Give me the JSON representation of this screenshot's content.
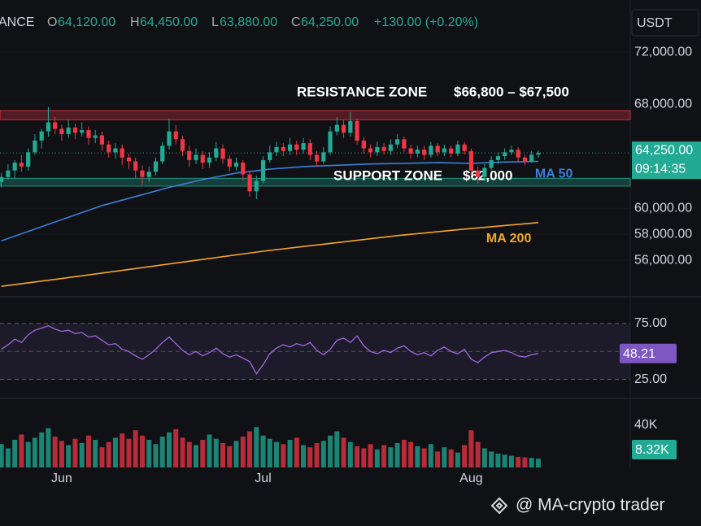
{
  "header": {
    "symbol": "ANCE",
    "open_key": "O",
    "open": "64,120.00",
    "high_key": "H",
    "high": "64,450.00",
    "low_key": "L",
    "low": "63,880.00",
    "close_key": "C",
    "close": "64,250.00",
    "change": "+130.00 (+0.20%)",
    "currency": "USDT"
  },
  "chart_data": [
    {
      "type": "candlestick",
      "x": [
        -9,
        -8,
        -7,
        -6,
        -5,
        -4,
        -3,
        -2,
        -1,
        0,
        1,
        2,
        3,
        4,
        5,
        6,
        7,
        8,
        9,
        10,
        11,
        12,
        13,
        14,
        15,
        16,
        17,
        18,
        19,
        20,
        21,
        22,
        23,
        24,
        25,
        26,
        27,
        28,
        29,
        30,
        31,
        32,
        33,
        34,
        35,
        36,
        37,
        38,
        39,
        40,
        41,
        42,
        43,
        44,
        45,
        46,
        47,
        48,
        49,
        50,
        51,
        52,
        53,
        54,
        55,
        56,
        57,
        58,
        59,
        60,
        61,
        62,
        63,
        64,
        65,
        66,
        67,
        68,
        69,
        70,
        71
      ],
      "ohlc": [
        [
          62000,
          62700,
          61600,
          62400
        ],
        [
          62400,
          63400,
          62200,
          62900
        ],
        [
          62900,
          63700,
          62300,
          63500
        ],
        [
          63500,
          64100,
          62800,
          63200
        ],
        [
          63200,
          64600,
          62900,
          64300
        ],
        [
          64300,
          65700,
          64100,
          65200
        ],
        [
          65200,
          66100,
          64600,
          65900
        ],
        [
          65900,
          67800,
          65500,
          66600
        ],
        [
          66600,
          67000,
          65700,
          66100
        ],
        [
          66100,
          66400,
          65200,
          65700
        ],
        [
          65700,
          66800,
          65400,
          66200
        ],
        [
          66200,
          66500,
          65300,
          65800
        ],
        [
          65800,
          66600,
          65500,
          66000
        ],
        [
          66000,
          66300,
          64900,
          65400
        ],
        [
          65400,
          66000,
          65000,
          65600
        ],
        [
          65600,
          65900,
          64400,
          64900
        ],
        [
          64900,
          65200,
          63900,
          64300
        ],
        [
          64300,
          65000,
          63800,
          64600
        ],
        [
          64600,
          64900,
          63300,
          63900
        ],
        [
          63900,
          64200,
          63000,
          63600
        ],
        [
          63600,
          63900,
          62300,
          62900
        ],
        [
          62900,
          63300,
          61800,
          62400
        ],
        [
          62400,
          63200,
          62000,
          62800
        ],
        [
          62800,
          63900,
          62500,
          63600
        ],
        [
          63600,
          65100,
          63400,
          64800
        ],
        [
          64800,
          66900,
          64500,
          65900
        ],
        [
          65900,
          66400,
          64900,
          65300
        ],
        [
          65300,
          65600,
          64000,
          64400
        ],
        [
          64400,
          64800,
          63200,
          63700
        ],
        [
          63700,
          64600,
          63400,
          64100
        ],
        [
          64100,
          64400,
          63000,
          63500
        ],
        [
          63500,
          64300,
          63100,
          63900
        ],
        [
          63900,
          65100,
          63600,
          64600
        ],
        [
          64600,
          64900,
          63400,
          63800
        ],
        [
          63800,
          64100,
          62800,
          63200
        ],
        [
          63200,
          63900,
          62900,
          63500
        ],
        [
          63500,
          63700,
          62100,
          62600
        ],
        [
          62600,
          62900,
          60900,
          61300
        ],
        [
          61300,
          62500,
          60700,
          62100
        ],
        [
          62100,
          64000,
          61900,
          63700
        ],
        [
          63700,
          64800,
          63500,
          64300
        ],
        [
          64300,
          65100,
          64000,
          64700
        ],
        [
          64700,
          65000,
          64000,
          64400
        ],
        [
          64400,
          65400,
          64100,
          64900
        ],
        [
          64900,
          65200,
          64100,
          64500
        ],
        [
          64500,
          65400,
          64200,
          65000
        ],
        [
          65000,
          65300,
          63700,
          64100
        ],
        [
          64100,
          64400,
          63200,
          63600
        ],
        [
          63600,
          64700,
          63400,
          64300
        ],
        [
          64300,
          66300,
          64100,
          65900
        ],
        [
          65900,
          67000,
          65600,
          66400
        ],
        [
          66400,
          66800,
          65400,
          65800
        ],
        [
          65800,
          67400,
          65500,
          66700
        ],
        [
          66700,
          66900,
          64900,
          65200
        ],
        [
          65200,
          65500,
          64200,
          64600
        ],
        [
          64600,
          64900,
          63900,
          64300
        ],
        [
          64300,
          65100,
          64000,
          64700
        ],
        [
          64700,
          65000,
          64100,
          64400
        ],
        [
          64400,
          65300,
          64100,
          64900
        ],
        [
          64900,
          65700,
          64600,
          65300
        ],
        [
          65300,
          65500,
          64300,
          64600
        ],
        [
          64600,
          64900,
          63800,
          64200
        ],
        [
          64200,
          64800,
          63900,
          64500
        ],
        [
          64500,
          64800,
          63700,
          64100
        ],
        [
          64100,
          65100,
          63900,
          64800
        ],
        [
          64800,
          65000,
          64000,
          64300
        ],
        [
          64300,
          64900,
          64000,
          64600
        ],
        [
          64600,
          64800,
          63900,
          64200
        ],
        [
          64200,
          65200,
          64000,
          64900
        ],
        [
          64900,
          65100,
          64100,
          64400
        ],
        [
          64400,
          64600,
          62500,
          62900
        ],
        [
          62900,
          63200,
          61900,
          62400
        ],
        [
          62400,
          63400,
          62100,
          63100
        ],
        [
          63100,
          64000,
          62900,
          63700
        ],
        [
          63700,
          64300,
          63400,
          64000
        ],
        [
          64000,
          64600,
          63700,
          64300
        ],
        [
          64300,
          64800,
          64100,
          64500
        ],
        [
          64500,
          64700,
          63600,
          63900
        ],
        [
          63900,
          64100,
          63300,
          63600
        ],
        [
          63600,
          64400,
          63500,
          64120
        ],
        [
          64120,
          64450,
          63880,
          64250
        ]
      ],
      "up_color": "#22ab94",
      "down_color": "#f23645",
      "xlim": [
        -9.2,
        84.7
      ],
      "xticks": [
        {
          "value": 0,
          "label": "Jun"
        },
        {
          "value": 30,
          "label": "Jul"
        },
        {
          "value": 61,
          "label": "Aug"
        }
      ],
      "ylim": [
        53200,
        76000
      ],
      "yticks": [
        {
          "value": 56000,
          "label": "56,000.00"
        },
        {
          "value": 58000,
          "label": "58,000.00"
        },
        {
          "value": 60000,
          "label": "60,000.00"
        },
        {
          "value": 68000,
          "label": "68,000.00"
        },
        {
          "value": 72000,
          "label": "72,000.00"
        }
      ],
      "zones": [
        {
          "label": "RESISTANCE ZONE",
          "range_label": "$66,800 – $67,500",
          "low": 66800,
          "high": 67500,
          "color": "#f23645"
        },
        {
          "label": "SUPPORT ZONE",
          "range_label": "$62,000",
          "level": 62000,
          "low": 61700,
          "high": 62300,
          "color": "#22ab94"
        }
      ],
      "lines": [
        {
          "name": "MA 50",
          "color": "#3d7fd9",
          "x": [
            -9,
            -4,
            1,
            6,
            11,
            16,
            21,
            26,
            31,
            36,
            41,
            46,
            51,
            56,
            61,
            66,
            71
          ],
          "values": [
            57500,
            58400,
            59300,
            60200,
            60900,
            61600,
            62200,
            62700,
            63000,
            63200,
            63300,
            63400,
            63450,
            63500,
            63450,
            63550,
            63600
          ]
        },
        {
          "name": "MA 200",
          "color": "#f5a623",
          "x": [
            -9,
            0,
            10,
            20,
            30,
            40,
            50,
            60,
            71
          ],
          "values": [
            54000,
            54600,
            55300,
            56000,
            56700,
            57300,
            57900,
            58400,
            58900
          ]
        }
      ],
      "last": {
        "value": 64250,
        "label": "64,250.00"
      },
      "countdown": "09:14:35"
    },
    {
      "type": "line",
      "color": "#9c6ade",
      "values": [
        52,
        56,
        61,
        58,
        65,
        69,
        71,
        73,
        70,
        68,
        69,
        66,
        67,
        63,
        64,
        60,
        56,
        57,
        52,
        50,
        46,
        43,
        47,
        52,
        58,
        63,
        57,
        51,
        47,
        50,
        46,
        49,
        53,
        48,
        45,
        47,
        44,
        41,
        30,
        38,
        48,
        53,
        56,
        54,
        57,
        55,
        58,
        51,
        47,
        52,
        60,
        62,
        58,
        64,
        55,
        50,
        48,
        51,
        49,
        53,
        55,
        50,
        47,
        49,
        46,
        51,
        54,
        50,
        48,
        52,
        43,
        40,
        45,
        49,
        50,
        51,
        49,
        46,
        45,
        47,
        48.21
      ],
      "ylim": [
        8,
        99
      ],
      "yticks": [
        {
          "value": 75,
          "label": "75.00"
        },
        {
          "value": 25,
          "label": "25.00"
        }
      ],
      "midline": 50,
      "last": 48.21
    },
    {
      "type": "bar",
      "values": [
        22000,
        18000,
        26000,
        31000,
        24000,
        28000,
        33000,
        37000,
        29000,
        25000,
        21000,
        27000,
        23000,
        30000,
        26000,
        19000,
        24000,
        28000,
        32000,
        27000,
        35000,
        30000,
        26000,
        22000,
        29000,
        33000,
        36000,
        28000,
        24000,
        21000,
        26000,
        31000,
        27000,
        23000,
        20000,
        25000,
        29000,
        34000,
        38000,
        30000,
        27000,
        24000,
        22000,
        26000,
        28000,
        21000,
        19000,
        23000,
        25000,
        30000,
        34000,
        28000,
        24000,
        20000,
        18000,
        22000,
        17000,
        21000,
        19000,
        23000,
        26000,
        24000,
        20000,
        18000,
        22000,
        15000,
        19000,
        17000,
        14000,
        21000,
        35000,
        24000,
        18000,
        15000,
        13000,
        12000,
        11000,
        10000,
        9500,
        9000,
        8320
      ],
      "ylim": [
        0,
        65000
      ],
      "yticks": [
        {
          "value": 40000,
          "label": "40K"
        }
      ],
      "last": {
        "value": 8320,
        "label": "8.32K"
      }
    }
  ],
  "watermark": "@ MA-crypto trader"
}
